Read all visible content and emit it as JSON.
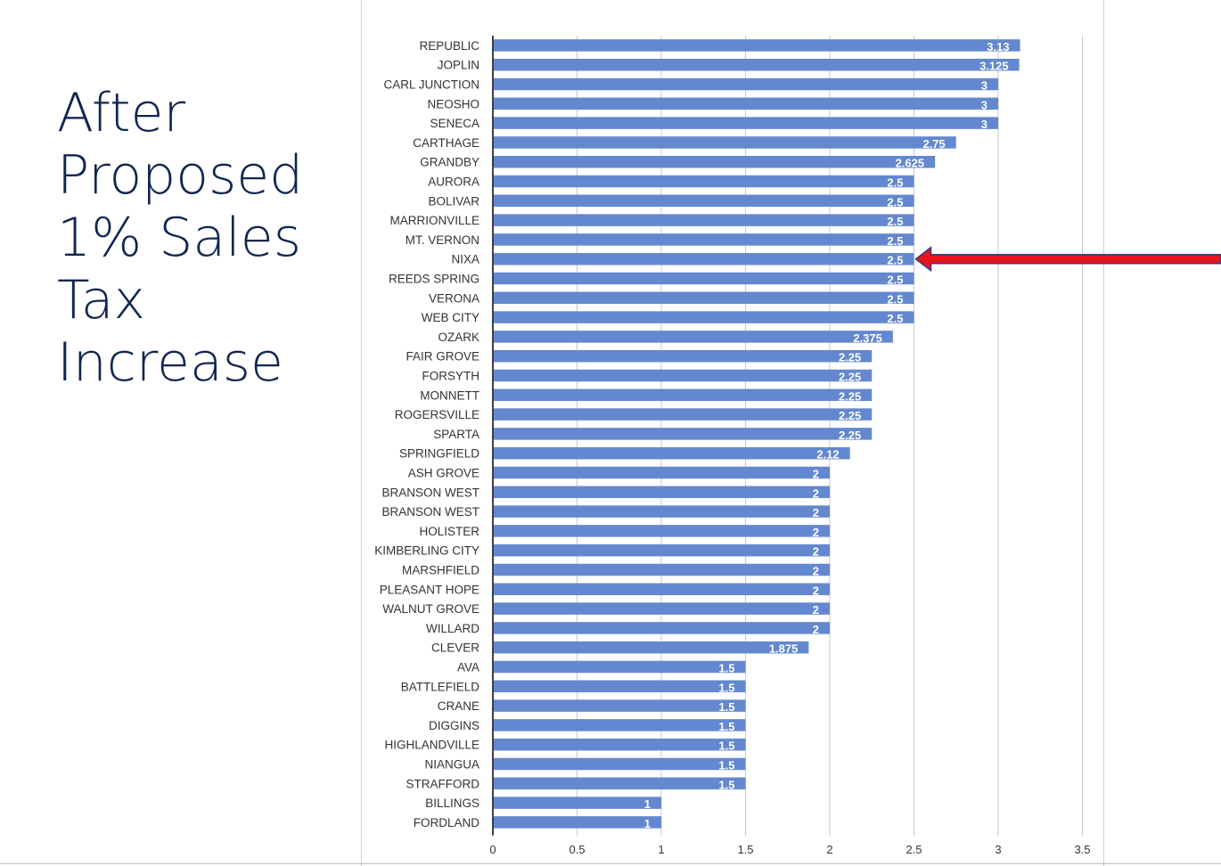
{
  "slide": {
    "title_lines": [
      "After",
      "Proposed",
      "1% Sales",
      "Tax",
      "Increase"
    ]
  },
  "chart_data": {
    "type": "bar",
    "orientation": "horizontal",
    "categories": [
      "REPUBLIC",
      "JOPLIN",
      "CARL JUNCTION",
      "NEOSHO",
      "SENECA",
      "CARTHAGE",
      "GRANDBY",
      "AURORA",
      "BOLIVAR",
      "MARRIONVILLE",
      "MT. VERNON",
      "NIXA",
      "REEDS SPRING",
      "VERONA",
      "WEB CITY",
      "OZARK",
      "FAIR GROVE",
      "FORSYTH",
      "MONNETT",
      "ROGERSVILLE",
      "SPARTA",
      "SPRINGFIELD",
      "ASH GROVE",
      "BRANSON WEST",
      "BRANSON WEST",
      "HOLISTER",
      "KIMBERLING CITY",
      "MARSHFIELD",
      "PLEASANT HOPE",
      "WALNUT GROVE",
      "WILLARD",
      "CLEVER",
      "AVA",
      "BATTLEFIELD",
      "CRANE",
      "DIGGINS",
      "HIGHLANDVILLE",
      "NIANGUA",
      "STRAFFORD",
      "BILLINGS",
      "FORDLAND"
    ],
    "values": [
      3.13,
      3.125,
      3,
      3,
      3,
      2.75,
      2.625,
      2.5,
      2.5,
      2.5,
      2.5,
      2.5,
      2.5,
      2.5,
      2.5,
      2.375,
      2.25,
      2.25,
      2.25,
      2.25,
      2.25,
      2.12,
      2,
      2,
      2,
      2,
      2,
      2,
      2,
      2,
      2,
      1.875,
      1.5,
      1.5,
      1.5,
      1.5,
      1.5,
      1.5,
      1.5,
      1,
      1
    ],
    "data_labels": [
      "3.13",
      "3.125",
      "3",
      "3",
      "3",
      "2.75",
      "2.625",
      "2.5",
      "2.5",
      "2.5",
      "2.5",
      "2.5",
      "2.5",
      "2.5",
      "2.5",
      "2.375",
      "2.25",
      "2.25",
      "2.25",
      "2.25",
      "2.25",
      "2.12",
      "2",
      "2",
      "2",
      "2",
      "2",
      "2",
      "2",
      "2",
      "2",
      "1.875",
      "1.5",
      "1.5",
      "1.5",
      "1.5",
      "1.5",
      "1.5",
      "1.5",
      "1",
      "1"
    ],
    "xlim": [
      0,
      3.5
    ],
    "xticks": [
      "0",
      "0.5",
      "1",
      "1.5",
      "2",
      "2.5",
      "3",
      "3.5"
    ],
    "title": "",
    "xlabel": "",
    "ylabel": "",
    "grid": "vertical",
    "highlight": {
      "category": "NIXA",
      "marker": "red arrow pointing left"
    },
    "colors": {
      "bar": "#6388cf",
      "label": "#ffffff",
      "arrow": "#e8141b",
      "gridline": "#c8c8c8"
    }
  }
}
